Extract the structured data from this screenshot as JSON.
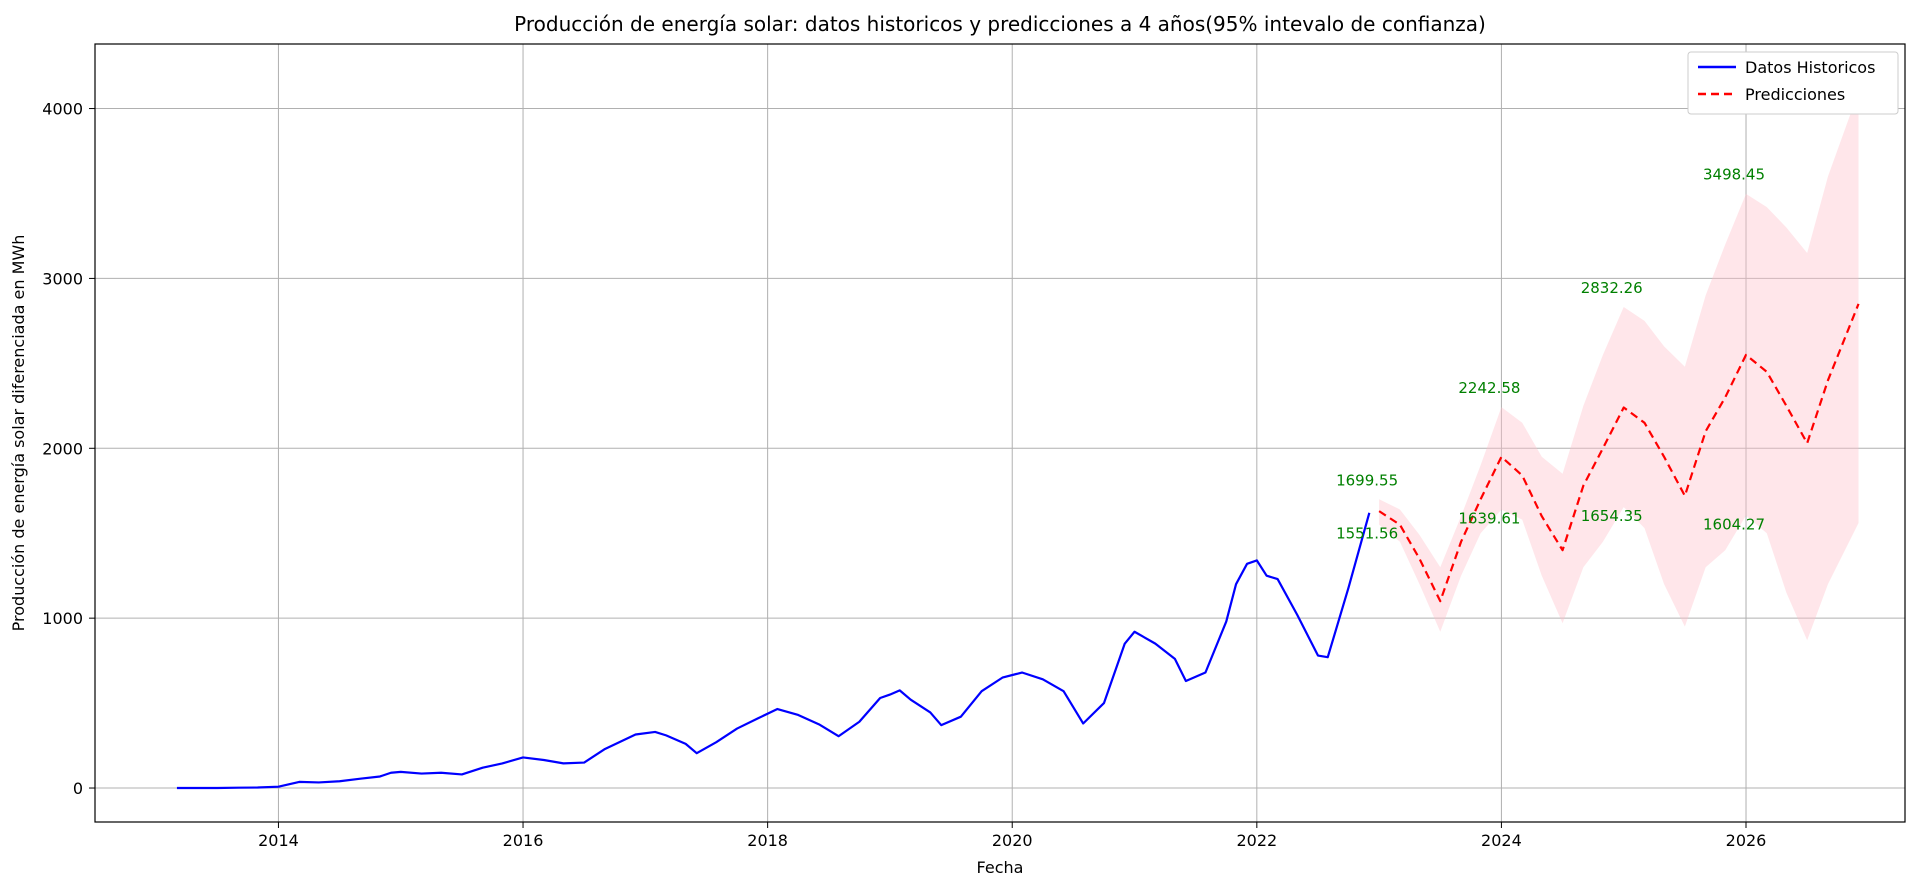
{
  "chart_data": {
    "type": "line",
    "title": "Producción de energía solar: datos historicos y predicciones a 4 años(95% intevalo de confianza)",
    "xlabel": "Fecha",
    "ylabel": "Producción de energía solar diferenciada en MWh",
    "xlim": [
      2012.5,
      2027.3
    ],
    "ylim": [
      -200,
      4380
    ],
    "x_ticks": [
      "2014",
      "2016",
      "2018",
      "2020",
      "2022",
      "2024",
      "2026"
    ],
    "y_ticks": [
      "0",
      "1000",
      "2000",
      "3000",
      "4000"
    ],
    "grid": true,
    "legend_position": "top-right",
    "colors": {
      "historical": "#0000ff",
      "prediction": "#ff0000",
      "confidence_band": "#ffc0cb",
      "annotation": "#008000",
      "grid": "#b0b0b0"
    },
    "series": [
      {
        "name": "Datos Historicos",
        "style": "solid",
        "x": [
          2013.17,
          2013.33,
          2013.5,
          2013.67,
          2013.83,
          2014.0,
          2014.17,
          2014.33,
          2014.5,
          2014.67,
          2014.83,
          2014.92,
          2015.0,
          2015.17,
          2015.33,
          2015.5,
          2015.67,
          2015.83,
          2016.0,
          2016.17,
          2016.33,
          2016.5,
          2016.67,
          2016.92,
          2017.08,
          2017.17,
          2017.33,
          2017.42,
          2017.58,
          2017.75,
          2017.92,
          2018.08,
          2018.25,
          2018.42,
          2018.58,
          2018.75,
          2018.92,
          2019.0,
          2019.08,
          2019.17,
          2019.33,
          2019.42,
          2019.58,
          2019.75,
          2019.92,
          2020.08,
          2020.25,
          2020.42,
          2020.58,
          2020.75,
          2020.92,
          2021.0,
          2021.17,
          2021.33,
          2021.42,
          2021.58,
          2021.75,
          2021.83,
          2021.92,
          2022.0,
          2022.08,
          2022.17,
          2022.33,
          2022.5,
          2022.58,
          2022.75,
          2022.92
        ],
        "values": [
          0,
          0,
          0,
          2,
          3,
          8,
          36,
          33,
          40,
          55,
          68,
          90,
          95,
          85,
          90,
          80,
          120,
          145,
          180,
          165,
          145,
          150,
          230,
          315,
          330,
          310,
          260,
          205,
          270,
          350,
          410,
          465,
          430,
          375,
          305,
          390,
          530,
          550,
          575,
          520,
          445,
          370,
          420,
          570,
          650,
          680,
          640,
          570,
          380,
          500,
          850,
          920,
          850,
          760,
          630,
          680,
          980,
          1200,
          1320,
          1340,
          1250,
          1230,
          1020,
          780,
          770,
          1180,
          1620
        ]
      },
      {
        "name": "Predicciones",
        "style": "dashed",
        "x": [
          2023.0,
          2023.17,
          2023.33,
          2023.5,
          2023.67,
          2023.83,
          2024.0,
          2024.17,
          2024.33,
          2024.5,
          2024.67,
          2024.83,
          2025.0,
          2025.17,
          2025.33,
          2025.5,
          2025.67,
          2025.83,
          2026.0,
          2026.17,
          2026.33,
          2026.5,
          2026.67,
          2026.92
        ],
        "values": [
          1630,
          1550,
          1350,
          1100,
          1450,
          1700,
          1950,
          1840,
          1600,
          1400,
          1780,
          2000,
          2240,
          2150,
          1950,
          1720,
          2100,
          2300,
          2550,
          2450,
          2250,
          2030,
          2400,
          2850
        ],
        "lower": [
          1550,
          1450,
          1200,
          920,
          1250,
          1500,
          1639,
          1580,
          1250,
          970,
          1300,
          1450,
          1654,
          1530,
          1200,
          950,
          1300,
          1400,
          1604,
          1500,
          1150,
          870,
          1200,
          1560
        ],
        "upper": [
          1700,
          1640,
          1490,
          1300,
          1600,
          1900,
          2242,
          2150,
          1950,
          1850,
          2250,
          2550,
          2832,
          2750,
          2600,
          2480,
          2900,
          3200,
          3498,
          3420,
          3300,
          3150,
          3600,
          4100
        ]
      }
    ],
    "annotations": [
      {
        "text": "1699.55",
        "x": 2023.0,
        "y": 1699.55,
        "position": "above"
      },
      {
        "text": "1551.56",
        "x": 2023.0,
        "y": 1551.56,
        "position": "below"
      },
      {
        "text": "2242.58",
        "x": 2024.0,
        "y": 2242.58,
        "position": "above"
      },
      {
        "text": "1639.61",
        "x": 2024.0,
        "y": 1639.61,
        "position": "below"
      },
      {
        "text": "2832.26",
        "x": 2025.0,
        "y": 2832.26,
        "position": "above"
      },
      {
        "text": "1654.35",
        "x": 2025.0,
        "y": 1654.35,
        "position": "below"
      },
      {
        "text": "3498.45",
        "x": 2026.0,
        "y": 3498.45,
        "position": "above"
      },
      {
        "text": "1604.27",
        "x": 2026.0,
        "y": 1604.27,
        "position": "below"
      }
    ]
  }
}
